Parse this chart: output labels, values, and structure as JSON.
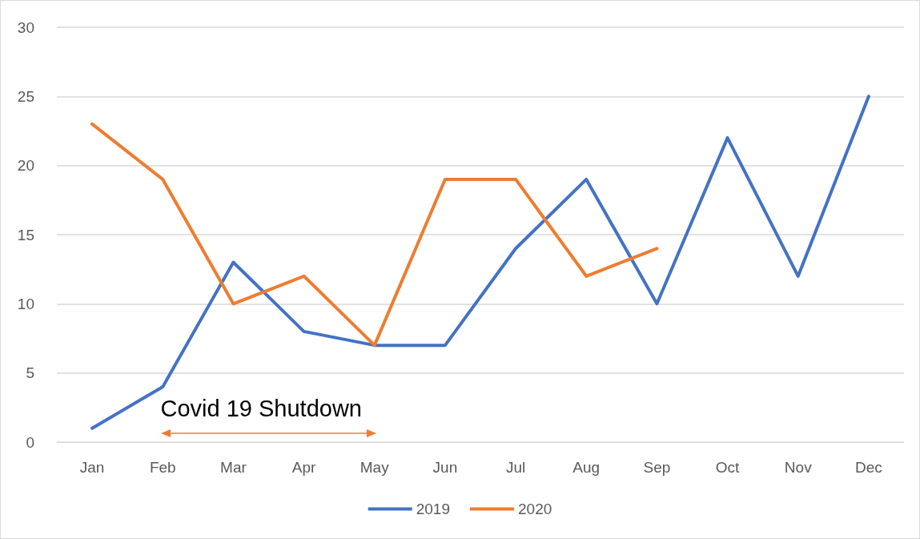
{
  "chart_data": {
    "type": "line",
    "categories": [
      "Jan",
      "Feb",
      "Mar",
      "Apr",
      "May",
      "Jun",
      "Jul",
      "Aug",
      "Sep",
      "Oct",
      "Nov",
      "Dec"
    ],
    "series": [
      {
        "name": "2019",
        "color": "#4472c4",
        "values": [
          1,
          4,
          13,
          8,
          7,
          7,
          14,
          19,
          10,
          22,
          12,
          25
        ]
      },
      {
        "name": "2020",
        "color": "#ed7d31",
        "values": [
          23,
          19,
          10,
          12,
          7,
          19,
          19,
          12,
          14,
          null,
          null,
          null
        ]
      }
    ],
    "ylim": [
      0,
      30
    ],
    "yticks": [
      0,
      5,
      10,
      15,
      20,
      25,
      30
    ],
    "annotations": [
      "Covid 19 Shutdown"
    ],
    "grid": "y",
    "legend": "bottom",
    "marker": "none",
    "line_style": "solid"
  }
}
